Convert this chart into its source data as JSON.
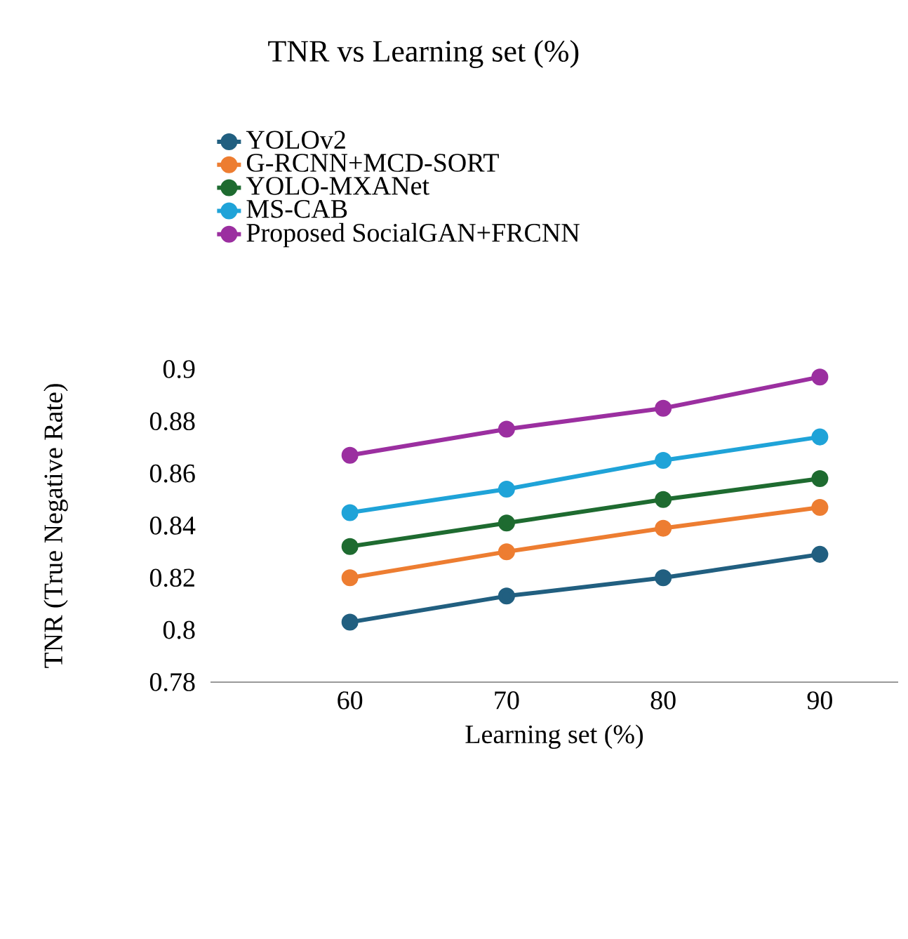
{
  "chart_data": {
    "type": "line",
    "title": "TNR vs Learning  set (%)",
    "xlabel": "Learning set (%)",
    "ylabel": "TNR (True Negative Rate)",
    "categories": [
      "60",
      "70",
      "80",
      "90"
    ],
    "series": [
      {
        "name": "YOLOv2",
        "color": "#215f80",
        "values": [
          0.803,
          0.813,
          0.82,
          0.829
        ]
      },
      {
        "name": "G-RCNN+MCD-SORT",
        "color": "#ed7d31",
        "values": [
          0.82,
          0.83,
          0.839,
          0.847
        ]
      },
      {
        "name": "YOLO-MXANet",
        "color": "#1e6b30",
        "values": [
          0.832,
          0.841,
          0.85,
          0.858
        ]
      },
      {
        "name": "MS-CAB",
        "color": "#1fa3d8",
        "values": [
          0.845,
          0.854,
          0.865,
          0.874
        ]
      },
      {
        "name": "Proposed SocialGAN+FRCNN",
        "color": "#9b2fa0",
        "values": [
          0.867,
          0.877,
          0.885,
          0.897
        ]
      }
    ],
    "ylim": [
      0.78,
      0.9
    ],
    "yticks": [
      0.78,
      0.8,
      0.82,
      0.84,
      0.86,
      0.88,
      0.9
    ],
    "legend": "top left",
    "marker": "circle",
    "line_style": "solid",
    "grid": false
  }
}
